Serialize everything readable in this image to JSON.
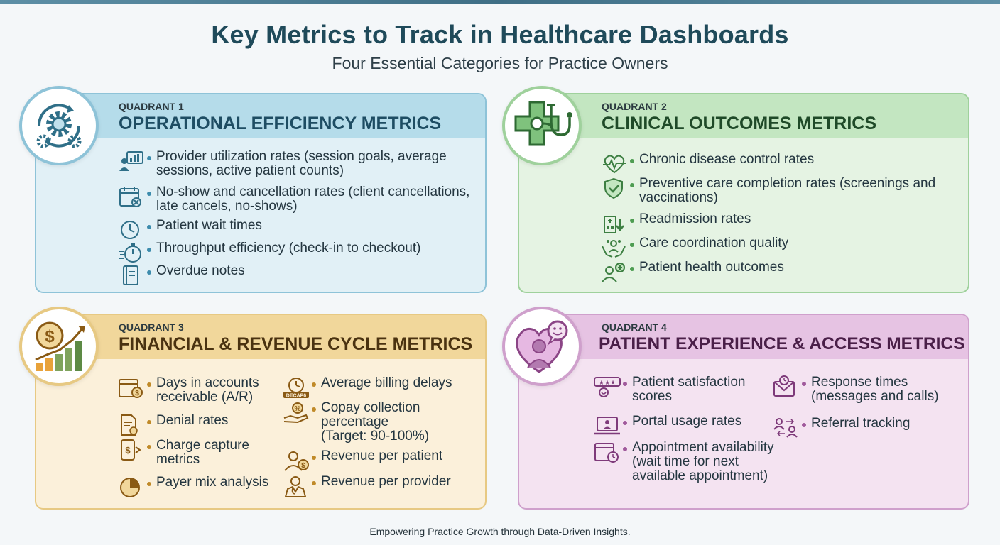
{
  "header": {
    "title": "Key Metrics to Track in Healthcare Dashboards",
    "subtitle": "Four Essential Categories for Practice Owners"
  },
  "quadrants": [
    {
      "label": "QUADRANT 1",
      "title": "OPERATIONAL EFFICIENCY METRICS",
      "icon": "gears-cycle-icon",
      "color": "#8ec3d8",
      "items": [
        {
          "icon": "provider-chart-icon",
          "text": "Provider utilization rates (session goals, average sessions, active patient counts)"
        },
        {
          "icon": "calendar-cancel-icon",
          "text": "No-show and cancellation rates (client cancellations, late cancels, no-shows)"
        },
        {
          "icon": "clock-icon",
          "text": "Patient wait times"
        },
        {
          "icon": "stopwatch-icon",
          "text": "Throughput efficiency (check-in to checkout)"
        },
        {
          "icon": "notebook-icon",
          "text": "Overdue notes"
        }
      ]
    },
    {
      "label": "QUADRANT 2",
      "title": "CLINICAL OUTCOMES METRICS",
      "icon": "medical-cross-stethoscope-icon",
      "color": "#9fd19c",
      "items": [
        {
          "icon": "heartbeat-icon",
          "text": "Chronic disease control rates"
        },
        {
          "icon": "shield-check-icon",
          "text": "Preventive care completion rates (screenings and vaccinations)"
        },
        {
          "icon": "hospital-arrow-icon",
          "text": "Readmission rates"
        },
        {
          "icon": "hands-care-icon",
          "text": "Care coordination quality"
        },
        {
          "icon": "patient-plus-icon",
          "text": "Patient health outcomes"
        }
      ]
    },
    {
      "label": "QUADRANT 3",
      "title": "FINANCIAL & REVENUE CYCLE METRICS",
      "icon": "dollar-growth-chart-icon",
      "color": "#e7c983",
      "items_left": [
        {
          "icon": "calendar-dollar-icon",
          "text": "Days in accounts receivable (A/R)"
        },
        {
          "icon": "document-denial-icon",
          "text": "Denial rates"
        },
        {
          "icon": "phone-dollar-icon",
          "text": "Charge capture metrics"
        },
        {
          "icon": "pie-chart-icon",
          "text": "Payer mix analysis"
        }
      ],
      "items_right": [
        {
          "icon": "clock-billing-icon",
          "text": "Average billing delays",
          "icon_text": "DECAP6"
        },
        {
          "icon": "hand-percent-icon",
          "text": "Copay collection percentage (Target: 90-100%)"
        },
        {
          "icon": "patient-dollar-icon",
          "text": "Revenue per patient"
        },
        {
          "icon": "doctor-icon",
          "text": "Revenue per provider"
        }
      ]
    },
    {
      "label": "QUADRANT 4",
      "title": "PATIENT EXPERIENCE & ACCESS METRICS",
      "icon": "heart-person-smile-icon",
      "color": "#cfa0cc",
      "items_left": [
        {
          "icon": "rating-stars-icon",
          "text": "Patient satisfaction scores"
        },
        {
          "icon": "laptop-portal-icon",
          "text": "Portal usage rates"
        },
        {
          "icon": "calendar-clock-icon",
          "text": "Appointment availability (wait time for next available appointment)"
        }
      ],
      "items_right": [
        {
          "icon": "envelope-clock-icon",
          "text": "Response times (messages and calls)"
        },
        {
          "icon": "referral-people-icon",
          "text": "Referral tracking"
        }
      ]
    }
  ],
  "footer": {
    "text": "Empowering Practice Growth through Data-Driven Insights."
  }
}
